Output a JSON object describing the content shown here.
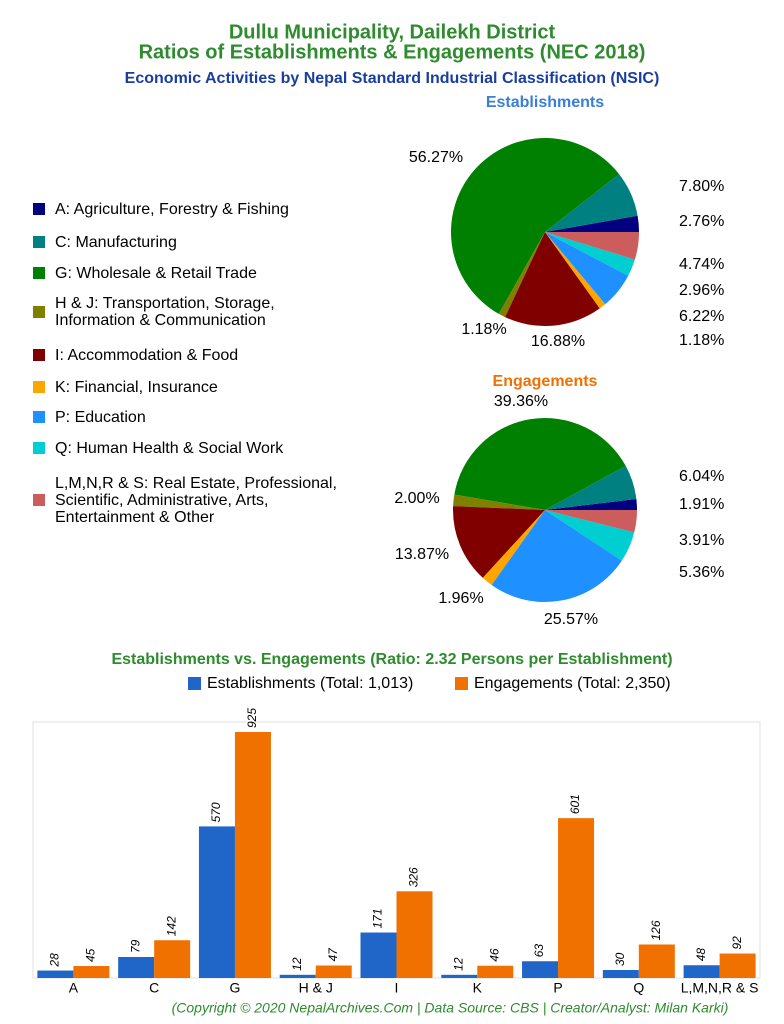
{
  "header": {
    "title": [
      "Dullu Municipality, Dailekh District",
      "Ratios of Establishments & Engagements (NEC 2018)"
    ],
    "subtitle": "Economic Activities by Nepal Standard Industrial Classification (NSIC)"
  },
  "chart_data": [
    {
      "type": "pie",
      "title": "Establishments",
      "categories": [
        "A: Agriculture, Forestry & Fishing",
        "C: Manufacturing",
        "G: Wholesale & Retail Trade",
        "H & J: Transportation, Storage,\nInformation & Communication",
        "I: Accommodation & Food",
        "K: Financial, Insurance",
        "P: Education",
        "Q: Human Health & Social Work",
        "L,M,N,R & S: Real Estate, Professional,\nScientific, Administrative, Arts,\nEntertainment & Other"
      ],
      "colors": [
        "#000080",
        "#008080",
        "#008000",
        "#808000",
        "#800000",
        "#ffa500",
        "#1e90ff",
        "#00ced1",
        "#cd5c5c"
      ],
      "values": [
        2.76,
        7.8,
        56.27,
        1.18,
        16.88,
        1.18,
        6.22,
        2.96,
        4.74
      ],
      "value_labels": [
        "2.76%",
        "7.80%",
        "56.27%",
        "1.18%",
        "16.88%",
        "1.18%",
        "6.22%",
        "2.96%",
        "4.74%"
      ]
    },
    {
      "type": "pie",
      "title": "Engagements",
      "colors": [
        "#000080",
        "#008080",
        "#008000",
        "#808000",
        "#800000",
        "#ffa500",
        "#1e90ff",
        "#00ced1",
        "#cd5c5c"
      ],
      "values": [
        1.91,
        6.04,
        39.36,
        2.0,
        13.87,
        1.96,
        25.57,
        5.36,
        3.91
      ],
      "value_labels": [
        "1.91%",
        "6.04%",
        "39.36%",
        "2.00%",
        "13.87%",
        "1.96%",
        "25.57%",
        "5.36%",
        "3.91%"
      ]
    },
    {
      "type": "bar",
      "title": "Establishments vs. Engagements (Ratio: 2.32 Persons per Establishment)",
      "categories": [
        "A",
        "C",
        "G",
        "H & J",
        "I",
        "K",
        "P",
        "Q",
        "L,M,N,R & S"
      ],
      "series": [
        {
          "name": "Establishments (Total: 1,013)",
          "color": "#1f66c8",
          "values": [
            28,
            79,
            570,
            12,
            171,
            12,
            63,
            30,
            48
          ]
        },
        {
          "name": "Engagements (Total: 2,350)",
          "color": "#f07000",
          "values": [
            45,
            142,
            925,
            47,
            326,
            46,
            601,
            126,
            92
          ]
        }
      ]
    }
  ],
  "footer": "(Copyright © 2020 NepalArchives.Com | Data Source: CBS | Creator/Analyst: Milan Karki)"
}
